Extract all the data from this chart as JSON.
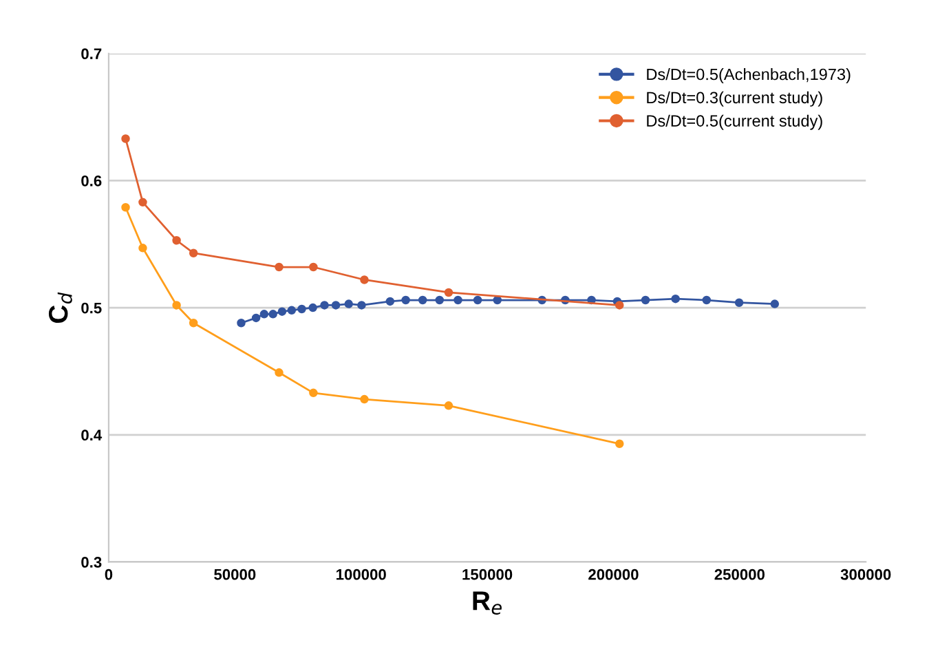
{
  "chart_data": {
    "type": "line",
    "xlabel": "R$_{e}$",
    "ylabel": "C$_{d}$",
    "xlim": [
      0,
      300000
    ],
    "xticks": [
      0,
      50000,
      100000,
      150000,
      200000,
      250000,
      300000
    ],
    "ylim": [
      0.3,
      0.7
    ],
    "yticks": [
      0.3,
      0.4,
      0.5,
      0.6,
      0.7
    ],
    "grid": "y",
    "legend": "top right",
    "marker": "circle",
    "line_style": "solid",
    "series": [
      {
        "name": "Ds/Dt=0.5(Achenbach,1973)",
        "color": "#3355a0",
        "x": [
          52500,
          58400,
          61600,
          65100,
          68700,
          72500,
          76500,
          80900,
          85500,
          90000,
          95100,
          100200,
          111500,
          117700,
          124400,
          131100,
          138400,
          146200,
          154000,
          171700,
          180900,
          191300,
          201500,
          212700,
          224600,
          236900,
          249800,
          263900
        ],
        "values": [
          0.488,
          0.492,
          0.495,
          0.495,
          0.497,
          0.498,
          0.499,
          0.5,
          0.502,
          0.502,
          0.503,
          0.502,
          0.505,
          0.506,
          0.506,
          0.506,
          0.506,
          0.506,
          0.506,
          0.506,
          0.506,
          0.506,
          0.505,
          0.506,
          0.507,
          0.506,
          0.504,
          0.503
        ]
      },
      {
        "name": "Ds/Dt=0.3(current study)",
        "color": "#ff9e1b",
        "x": [
          6700,
          13500,
          26900,
          33600,
          67500,
          81100,
          101300,
          134700,
          202400
        ],
        "values": [
          0.579,
          0.547,
          0.502,
          0.488,
          0.449,
          0.433,
          0.428,
          0.423,
          0.393
        ]
      },
      {
        "name": "Ds/Dt=0.5(current study)",
        "color": "#e06030",
        "x": [
          6700,
          13500,
          26900,
          33600,
          67500,
          81100,
          101300,
          134700,
          202400
        ],
        "values": [
          0.633,
          0.583,
          0.553,
          0.543,
          0.532,
          0.532,
          0.522,
          0.512,
          0.502
        ]
      }
    ]
  }
}
